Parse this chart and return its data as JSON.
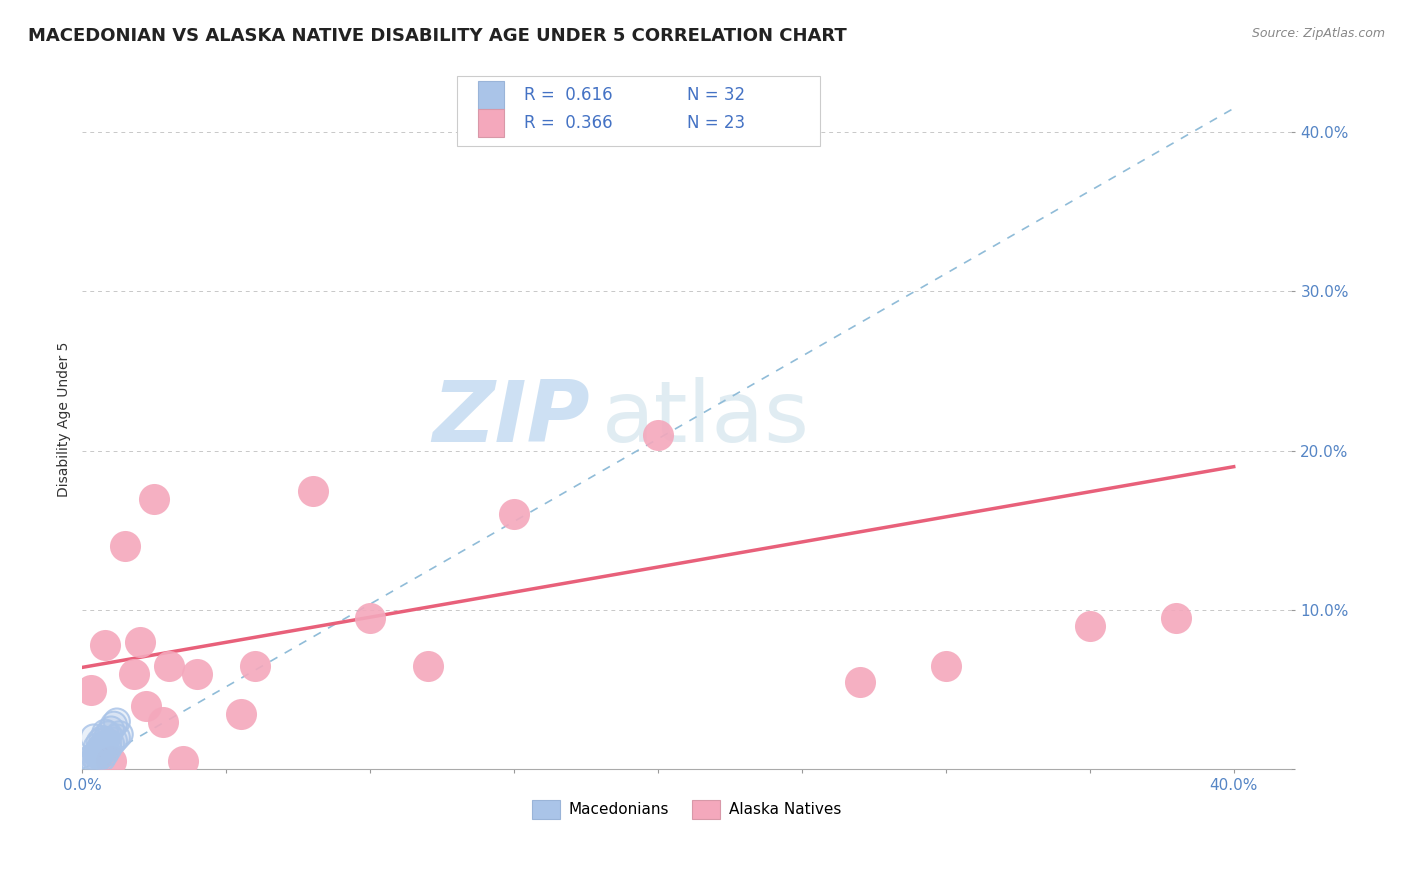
{
  "title": "MACEDONIAN VS ALASKA NATIVE DISABILITY AGE UNDER 5 CORRELATION CHART",
  "source": "Source: ZipAtlas.com",
  "ylabel": "Disability Age Under 5",
  "xlim": [
    0.0,
    0.42
  ],
  "ylim": [
    0.0,
    0.44
  ],
  "xticks": [
    0.0,
    0.05,
    0.1,
    0.15,
    0.2,
    0.25,
    0.3,
    0.35,
    0.4
  ],
  "yticks": [
    0.0,
    0.1,
    0.2,
    0.3,
    0.4
  ],
  "legend_r1": "R =  0.616",
  "legend_n1": "N = 32",
  "legend_r2": "R =  0.366",
  "legend_n2": "N = 23",
  "macedonian_color": "#aac4e8",
  "alaska_color": "#f4a8bc",
  "trend_blue_color": "#90bcd8",
  "trend_pink_color": "#e8607a",
  "watermark_zip_color": "#b8d4ee",
  "watermark_atlas_color": "#c8dde8",
  "title_fontsize": 13,
  "axis_label_fontsize": 10,
  "tick_fontsize": 11,
  "r_color": "#4472c4",
  "n_color": "#4472c4",
  "macedonians_x": [
    0.002,
    0.003,
    0.003,
    0.004,
    0.004,
    0.004,
    0.005,
    0.005,
    0.005,
    0.005,
    0.006,
    0.006,
    0.006,
    0.006,
    0.007,
    0.007,
    0.007,
    0.007,
    0.008,
    0.008,
    0.008,
    0.008,
    0.009,
    0.009,
    0.009,
    0.01,
    0.01,
    0.011,
    0.011,
    0.012,
    0.012,
    0.013
  ],
  "macedonians_y": [
    0.003,
    0.004,
    0.007,
    0.005,
    0.008,
    0.02,
    0.006,
    0.009,
    0.01,
    0.014,
    0.008,
    0.011,
    0.013,
    0.017,
    0.007,
    0.012,
    0.015,
    0.019,
    0.01,
    0.014,
    0.018,
    0.023,
    0.013,
    0.017,
    0.022,
    0.016,
    0.025,
    0.018,
    0.028,
    0.02,
    0.03,
    0.022
  ],
  "alaska_x": [
    0.003,
    0.008,
    0.01,
    0.015,
    0.018,
    0.02,
    0.022,
    0.025,
    0.028,
    0.03,
    0.035,
    0.04,
    0.055,
    0.06,
    0.08,
    0.1,
    0.12,
    0.15,
    0.2,
    0.27,
    0.3,
    0.35,
    0.38
  ],
  "alaska_y": [
    0.05,
    0.078,
    0.005,
    0.14,
    0.06,
    0.08,
    0.04,
    0.17,
    0.03,
    0.065,
    0.005,
    0.06,
    0.035,
    0.065,
    0.175,
    0.095,
    0.065,
    0.16,
    0.21,
    0.055,
    0.065,
    0.09,
    0.095
  ],
  "pink_line_x0": 0.0,
  "pink_line_y0": 0.064,
  "pink_line_x1": 0.4,
  "pink_line_y1": 0.19,
  "blue_line_x0": 0.0,
  "blue_line_y0": 0.0,
  "blue_line_x1": 0.4,
  "blue_line_y1": 0.415
}
